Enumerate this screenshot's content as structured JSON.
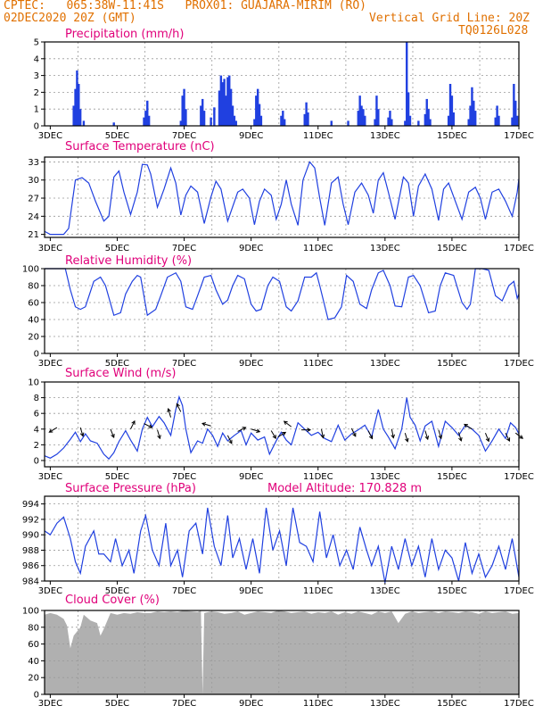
{
  "header": {
    "line1": "CPTEC:   065:38W-11:41S   PROX01: GUAJARA-MIRIM (RO)",
    "line2_left": "02DEC2020 20Z (GMT)",
    "line2_right": "Vertical Grid Line: 20Z",
    "line3_right": "TQ0126L028"
  },
  "colors": {
    "line": "#2040e0",
    "title": "#e0007a",
    "header": "#e07000",
    "cloud": "#b0b0b0",
    "grid": "#999999"
  },
  "x_labels": [
    "3DEC",
    "5DEC",
    "7DEC",
    "9DEC",
    "11DEC",
    "13DEC",
    "15DEC",
    "17DEC"
  ],
  "chart_data": [
    {
      "type": "bar",
      "title": "Precipitation (mm/h)",
      "ylim": [
        0,
        5
      ],
      "yticks": [
        0,
        1,
        2,
        3,
        4,
        5
      ],
      "x_start_day": 2.83,
      "x_end_day": 17,
      "bars": [
        [
          3.7,
          1.2
        ],
        [
          3.75,
          2.2
        ],
        [
          3.8,
          3.3
        ],
        [
          3.85,
          2.5
        ],
        [
          3.9,
          1.0
        ],
        [
          4.0,
          0.3
        ],
        [
          4.9,
          0.2
        ],
        [
          5.8,
          0.5
        ],
        [
          5.85,
          0.9
        ],
        [
          5.9,
          1.5
        ],
        [
          5.95,
          0.6
        ],
        [
          6.9,
          0.3
        ],
        [
          6.95,
          1.8
        ],
        [
          7.0,
          2.2
        ],
        [
          7.05,
          1.0
        ],
        [
          7.5,
          1.2
        ],
        [
          7.55,
          1.6
        ],
        [
          7.6,
          0.9
        ],
        [
          7.8,
          0.5
        ],
        [
          7.9,
          1.1
        ],
        [
          8.05,
          2.1
        ],
        [
          8.1,
          3.0
        ],
        [
          8.15,
          2.6
        ],
        [
          8.2,
          2.8
        ],
        [
          8.25,
          1.8
        ],
        [
          8.3,
          2.9
        ],
        [
          8.35,
          3.0
        ],
        [
          8.4,
          2.2
        ],
        [
          8.45,
          1.2
        ],
        [
          8.5,
          0.6
        ],
        [
          8.55,
          0.3
        ],
        [
          9.1,
          0.4
        ],
        [
          9.15,
          1.8
        ],
        [
          9.2,
          2.2
        ],
        [
          9.25,
          1.3
        ],
        [
          9.3,
          0.6
        ],
        [
          9.9,
          0.6
        ],
        [
          9.95,
          0.9
        ],
        [
          10.0,
          0.4
        ],
        [
          10.6,
          0.7
        ],
        [
          10.65,
          1.4
        ],
        [
          10.7,
          0.8
        ],
        [
          11.4,
          0.3
        ],
        [
          11.9,
          0.3
        ],
        [
          12.2,
          0.9
        ],
        [
          12.25,
          1.8
        ],
        [
          12.3,
          1.2
        ],
        [
          12.35,
          1.0
        ],
        [
          12.4,
          0.6
        ],
        [
          12.7,
          0.4
        ],
        [
          12.75,
          1.8
        ],
        [
          12.8,
          1.0
        ],
        [
          13.1,
          0.5
        ],
        [
          13.15,
          0.9
        ],
        [
          13.2,
          0.4
        ],
        [
          13.6,
          0.3
        ],
        [
          13.65,
          5.0
        ],
        [
          13.7,
          2.0
        ],
        [
          13.75,
          0.6
        ],
        [
          14.0,
          0.3
        ],
        [
          14.2,
          0.7
        ],
        [
          14.25,
          1.6
        ],
        [
          14.3,
          1.0
        ],
        [
          14.35,
          0.4
        ],
        [
          14.9,
          0.6
        ],
        [
          14.95,
          2.5
        ],
        [
          15.0,
          1.8
        ],
        [
          15.05,
          0.8
        ],
        [
          15.5,
          0.4
        ],
        [
          15.55,
          1.2
        ],
        [
          15.6,
          2.3
        ],
        [
          15.65,
          1.5
        ],
        [
          15.7,
          0.9
        ],
        [
          16.3,
          0.5
        ],
        [
          16.35,
          1.2
        ],
        [
          16.4,
          0.6
        ],
        [
          16.8,
          0.5
        ],
        [
          16.85,
          2.5
        ],
        [
          16.9,
          1.5
        ],
        [
          16.95,
          0.6
        ]
      ]
    },
    {
      "type": "line",
      "title": "Surface Temperature (nC)",
      "ylim": [
        20.5,
        33.8
      ],
      "yticks": [
        21,
        24,
        27,
        30,
        33
      ],
      "x": [
        2.83,
        3.0,
        3.2,
        3.4,
        3.55,
        3.75,
        3.95,
        4.15,
        4.35,
        4.6,
        4.75,
        4.9,
        5.05,
        5.2,
        5.4,
        5.6,
        5.75,
        5.9,
        6.0,
        6.2,
        6.4,
        6.6,
        6.75,
        6.9,
        7.05,
        7.2,
        7.4,
        7.6,
        7.8,
        7.95,
        8.1,
        8.3,
        8.6,
        8.75,
        8.95,
        9.1,
        9.25,
        9.4,
        9.6,
        9.75,
        9.9,
        10.05,
        10.2,
        10.4,
        10.55,
        10.75,
        10.9,
        11.05,
        11.2,
        11.4,
        11.6,
        11.75,
        11.9,
        12.1,
        12.3,
        12.5,
        12.65,
        12.8,
        12.95,
        13.1,
        13.3,
        13.55,
        13.7,
        13.85,
        14.0,
        14.2,
        14.4,
        14.6,
        14.75,
        14.9,
        15.1,
        15.3,
        15.5,
        15.7,
        15.85,
        16.0,
        16.2,
        16.4,
        16.6,
        16.8,
        16.95,
        17.0
      ],
      "values": [
        21.5,
        21.0,
        21.0,
        21.0,
        22.0,
        30.0,
        30.4,
        29.5,
        26.5,
        23.2,
        24.0,
        30.5,
        31.5,
        28.0,
        24.3,
        28.0,
        32.6,
        32.5,
        31.0,
        25.5,
        28.5,
        32.0,
        29.5,
        24.2,
        27.5,
        29.0,
        28.0,
        22.8,
        27.2,
        29.8,
        28.5,
        23.2,
        28.0,
        28.5,
        27.0,
        22.6,
        26.5,
        28.5,
        27.5,
        23.5,
        26.0,
        30.0,
        26.0,
        22.5,
        30.0,
        33.0,
        32.0,
        27.0,
        22.5,
        29.5,
        30.5,
        26.0,
        22.6,
        28.0,
        29.5,
        27.5,
        24.5,
        30.0,
        31.2,
        28.0,
        23.5,
        30.5,
        29.5,
        24.0,
        29.0,
        31.0,
        28.5,
        23.3,
        28.5,
        29.5,
        26.5,
        23.5,
        28.0,
        28.8,
        27.0,
        23.5,
        28.0,
        28.5,
        26.5,
        24.0,
        28.0,
        30.2
      ]
    },
    {
      "type": "line",
      "title": "Relative Humidity (%)",
      "ylim": [
        0,
        100
      ],
      "yticks": [
        0,
        20,
        40,
        60,
        80,
        100
      ],
      "x": [
        2.83,
        3.3,
        3.45,
        3.6,
        3.75,
        3.9,
        4.05,
        4.3,
        4.5,
        4.65,
        4.9,
        5.1,
        5.25,
        5.45,
        5.6,
        5.7,
        5.9,
        6.15,
        6.3,
        6.5,
        6.75,
        6.9,
        7.05,
        7.25,
        7.4,
        7.6,
        7.8,
        7.95,
        8.15,
        8.3,
        8.45,
        8.6,
        8.8,
        9.0,
        9.15,
        9.3,
        9.5,
        9.65,
        9.85,
        10.05,
        10.2,
        10.4,
        10.6,
        10.8,
        10.95,
        11.05,
        11.3,
        11.5,
        11.7,
        11.85,
        12.05,
        12.25,
        12.45,
        12.6,
        12.8,
        12.95,
        13.15,
        13.3,
        13.5,
        13.7,
        13.85,
        14.05,
        14.3,
        14.5,
        14.65,
        14.8,
        15.05,
        15.3,
        15.45,
        15.55,
        15.7,
        15.9,
        16.1,
        16.3,
        16.5,
        16.7,
        16.85,
        16.95,
        17.0
      ],
      "values": [
        100,
        100,
        100,
        75,
        55,
        52,
        55,
        85,
        90,
        80,
        45,
        48,
        70,
        85,
        92,
        90,
        45,
        52,
        68,
        90,
        95,
        85,
        55,
        52,
        68,
        90,
        92,
        75,
        58,
        63,
        80,
        92,
        88,
        58,
        50,
        52,
        80,
        90,
        85,
        55,
        50,
        62,
        90,
        90,
        95,
        80,
        40,
        42,
        55,
        92,
        85,
        58,
        53,
        75,
        95,
        98,
        80,
        56,
        55,
        90,
        92,
        80,
        48,
        50,
        80,
        95,
        92,
        60,
        52,
        58,
        100,
        100,
        98,
        68,
        62,
        80,
        85,
        65,
        70
      ]
    },
    {
      "type": "line",
      "title": "Surface Wind (m/s)",
      "ylim": [
        -0.8,
        10
      ],
      "yticks": [
        0,
        2,
        4,
        6,
        8,
        10
      ],
      "x": [
        2.83,
        3.0,
        3.2,
        3.4,
        3.6,
        3.75,
        3.9,
        4.05,
        4.2,
        4.4,
        4.6,
        4.75,
        4.9,
        5.05,
        5.25,
        5.4,
        5.6,
        5.75,
        5.9,
        6.05,
        6.25,
        6.4,
        6.6,
        6.75,
        6.85,
        6.95,
        7.05,
        7.2,
        7.4,
        7.55,
        7.7,
        7.85,
        8.0,
        8.15,
        8.3,
        8.5,
        8.7,
        8.85,
        9.0,
        9.2,
        9.4,
        9.55,
        9.75,
        9.9,
        10.05,
        10.2,
        10.4,
        10.6,
        10.8,
        11.0,
        11.2,
        11.4,
        11.6,
        11.8,
        12.0,
        12.2,
        12.4,
        12.6,
        12.8,
        12.95,
        13.1,
        13.3,
        13.5,
        13.65,
        13.75,
        13.9,
        14.05,
        14.2,
        14.4,
        14.6,
        14.8,
        15.0,
        15.2,
        15.4,
        15.6,
        15.8,
        16.0,
        16.2,
        16.4,
        16.6,
        16.75,
        16.9,
        17.0
      ],
      "values": [
        0.6,
        0.3,
        0.8,
        1.6,
        2.7,
        3.6,
        2.4,
        3.4,
        2.5,
        2.2,
        0.8,
        0.2,
        1.0,
        2.4,
        3.8,
        2.6,
        1.2,
        4.0,
        5.5,
        4.3,
        5.6,
        4.8,
        3.2,
        6.5,
        8.1,
        7.0,
        4.0,
        1.0,
        2.5,
        2.2,
        4.0,
        3.2,
        1.8,
        3.5,
        2.5,
        3.2,
        3.8,
        2.0,
        3.5,
        2.6,
        3.0,
        0.8,
        2.5,
        3.6,
        2.6,
        2.0,
        4.8,
        4.0,
        3.2,
        3.6,
        2.8,
        2.4,
        4.5,
        2.6,
        3.4,
        3.9,
        4.5,
        3.0,
        6.5,
        4.0,
        3.0,
        1.5,
        4.0,
        8.0,
        5.5,
        4.5,
        2.5,
        4.4,
        5.0,
        1.8,
        5.0,
        4.2,
        3.2,
        4.5,
        4.0,
        3.2,
        1.2,
        2.5,
        4.0,
        2.8,
        4.8,
        4.2,
        3.4
      ]
    },
    {
      "type": "line",
      "title": "Surface Pressure (hPa)",
      "annotation": "Model Altitude: 170.828 m",
      "ylim": [
        984,
        995
      ],
      "yticks": [
        984,
        986,
        988,
        990,
        992,
        994
      ],
      "x": [
        2.83,
        3.0,
        3.2,
        3.4,
        3.6,
        3.75,
        3.9,
        4.05,
        4.3,
        4.45,
        4.6,
        4.8,
        4.95,
        5.15,
        5.35,
        5.5,
        5.7,
        5.85,
        6.05,
        6.25,
        6.45,
        6.6,
        6.8,
        6.95,
        7.15,
        7.35,
        7.55,
        7.7,
        7.9,
        8.1,
        8.3,
        8.45,
        8.65,
        8.85,
        9.05,
        9.25,
        9.45,
        9.65,
        9.85,
        10.05,
        10.25,
        10.45,
        10.65,
        10.85,
        11.05,
        11.25,
        11.45,
        11.65,
        11.85,
        12.05,
        12.25,
        12.45,
        12.6,
        12.8,
        13.0,
        13.2,
        13.4,
        13.6,
        13.8,
        14.0,
        14.2,
        14.4,
        14.6,
        14.8,
        15.0,
        15.2,
        15.4,
        15.6,
        15.8,
        16.0,
        16.2,
        16.4,
        16.6,
        16.8,
        17.0
      ],
      "values": [
        990.5,
        990,
        991.5,
        992.3,
        989.5,
        986.5,
        985.0,
        988.5,
        990.5,
        987.5,
        987.5,
        986.5,
        989.5,
        986.0,
        988.0,
        985.0,
        990.5,
        992.5,
        988.0,
        986.0,
        991.5,
        986.0,
        988.0,
        984.5,
        990.5,
        991.5,
        987.5,
        993.5,
        988.5,
        986.0,
        992.5,
        987.0,
        989.5,
        985.5,
        989.5,
        985.0,
        993.5,
        988.0,
        990.5,
        986.0,
        993.5,
        989.0,
        988.5,
        986.5,
        993.0,
        987.0,
        990.0,
        986.0,
        988.0,
        985.5,
        991.0,
        988.0,
        986.0,
        988.5,
        983.8,
        988.5,
        985.5,
        989.5,
        986.0,
        988.5,
        984.5,
        989.5,
        985.5,
        988.0,
        987.0,
        984.0,
        989.0,
        985.0,
        987.5,
        984.5,
        986.0,
        988.5,
        985.5,
        989.5,
        984.5
      ]
    },
    {
      "type": "area",
      "title": "Cloud Cover (%)",
      "ylim": [
        0,
        100
      ],
      "yticks": [
        0,
        20,
        40,
        60,
        80,
        100
      ],
      "x": [
        2.83,
        3.0,
        3.2,
        3.4,
        3.5,
        3.6,
        3.7,
        3.8,
        3.9,
        4.0,
        4.2,
        4.4,
        4.5,
        4.6,
        4.8,
        5.0,
        5.2,
        5.4,
        5.6,
        5.8,
        6.0,
        6.2,
        6.4,
        6.6,
        6.8,
        7.0,
        7.2,
        7.4,
        7.5,
        7.55,
        7.6,
        7.8,
        8.0,
        8.2,
        8.4,
        8.6,
        8.8,
        9.0,
        9.2,
        9.4,
        9.6,
        9.8,
        10.0,
        10.2,
        10.4,
        10.6,
        10.8,
        11.0,
        11.2,
        11.4,
        11.6,
        11.8,
        12.0,
        12.2,
        12.4,
        12.6,
        12.8,
        13.0,
        13.2,
        13.4,
        13.6,
        13.8,
        14.0,
        14.2,
        14.4,
        14.6,
        14.8,
        15.0,
        15.2,
        15.4,
        15.6,
        15.8,
        16.0,
        16.2,
        16.4,
        16.6,
        16.8,
        17.0
      ],
      "values": [
        95,
        97,
        95,
        90,
        82,
        55,
        70,
        75,
        80,
        95,
        88,
        85,
        70,
        78,
        97,
        95,
        97,
        96,
        98,
        97,
        97,
        99,
        98,
        99,
        98,
        100,
        99,
        98,
        100,
        0,
        97,
        99,
        98,
        96,
        97,
        99,
        95,
        97,
        99,
        98,
        97,
        100,
        99,
        97,
        98,
        99,
        96,
        98,
        97,
        99,
        95,
        98,
        96,
        99,
        97,
        95,
        99,
        97,
        99,
        85,
        96,
        99,
        97,
        98,
        99,
        97,
        99,
        98,
        97,
        99,
        98,
        96,
        99,
        97,
        98,
        99,
        96,
        97
      ]
    }
  ],
  "wind_arrows": [
    [
      3.2,
      4.2,
      -1,
      0.6
    ],
    [
      3.9,
      4.2,
      0.3,
      1
    ],
    [
      4.8,
      4.0,
      0.4,
      1
    ],
    [
      5.4,
      4.0,
      0.5,
      -1
    ],
    [
      5.8,
      4.7,
      1,
      0.5
    ],
    [
      6.2,
      3.9,
      0.3,
      1
    ],
    [
      6.6,
      5.5,
      -0.3,
      -1
    ],
    [
      6.9,
      6.2,
      -0.5,
      -1
    ],
    [
      7.8,
      4.4,
      -1,
      -0.3
    ],
    [
      8.3,
      3.2,
      0.5,
      1
    ],
    [
      8.6,
      3.7,
      1,
      -0.5
    ],
    [
      9.0,
      4.0,
      1,
      0.3
    ],
    [
      9.6,
      3.8,
      0.6,
      1
    ],
    [
      9.8,
      3.0,
      1,
      -0.6
    ],
    [
      10.2,
      4.3,
      -0.8,
      -0.6
    ],
    [
      10.5,
      3.9,
      1,
      0
    ],
    [
      11.1,
      4.0,
      0.2,
      1
    ],
    [
      12.0,
      4.1,
      0.5,
      1
    ],
    [
      12.5,
      3.8,
      0.5,
      1
    ],
    [
      13.2,
      4.0,
      0.2,
      1
    ],
    [
      13.6,
      3.5,
      0.3,
      1
    ],
    [
      14.2,
      3.8,
      0.3,
      1
    ],
    [
      14.6,
      3.9,
      0.3,
      1
    ],
    [
      15.2,
      3.6,
      0.3,
      1
    ],
    [
      15.6,
      4.0,
      -0.8,
      -0.5
    ],
    [
      16.0,
      3.5,
      0.4,
      1
    ],
    [
      16.6,
      3.5,
      0.5,
      1
    ],
    [
      16.9,
      3.5,
      0.8,
      0.6
    ]
  ]
}
